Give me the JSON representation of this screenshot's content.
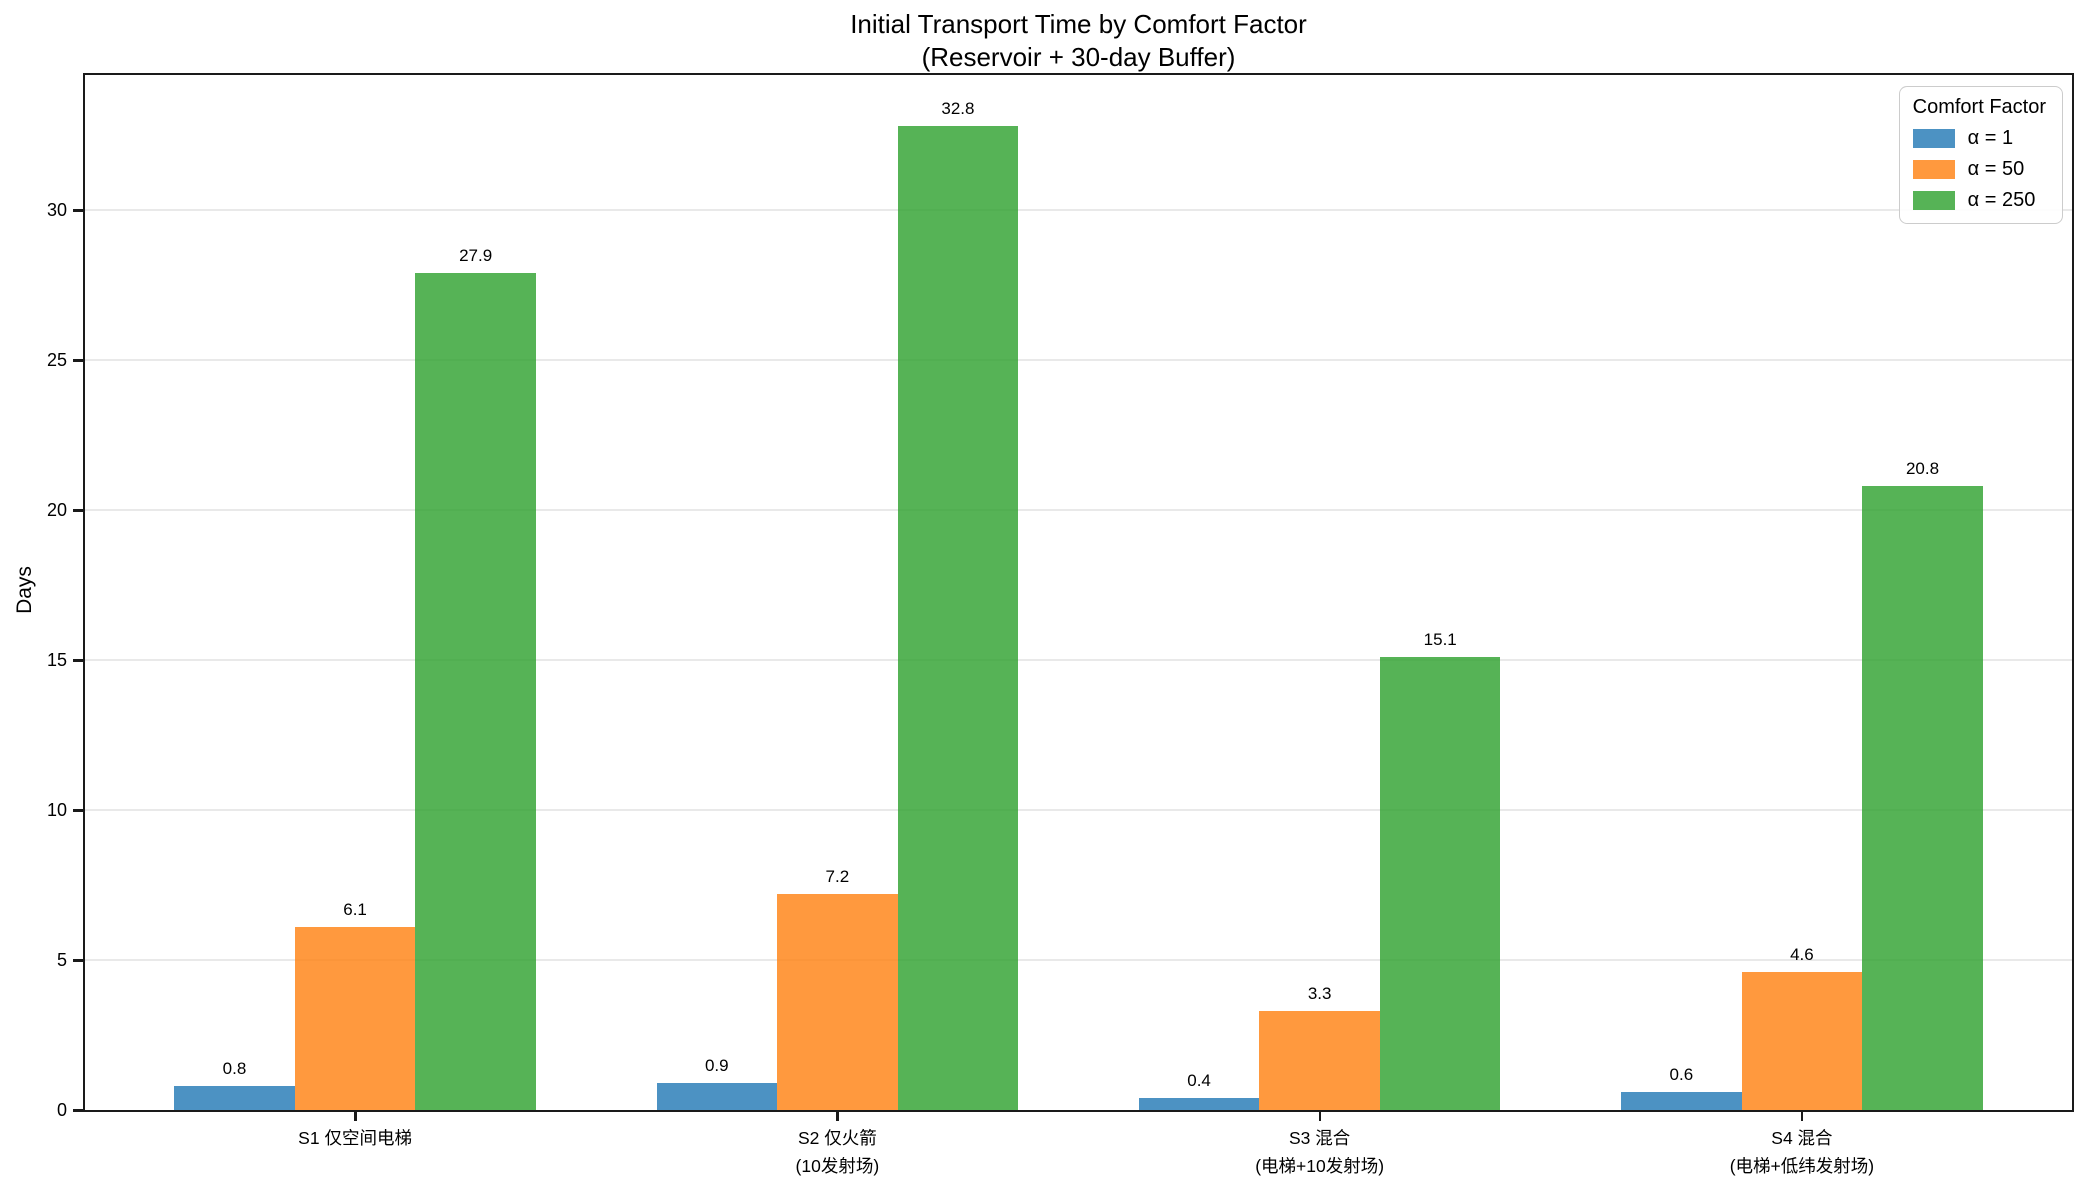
{
  "chart_data": {
    "type": "bar",
    "title": "Initial Transport Time by Comfort Factor",
    "subtitle": "(Reservoir + 30-day Buffer)",
    "ylabel": "Days",
    "ylim": [
      0,
      34.5
    ],
    "yticks": [
      0,
      5,
      10,
      15,
      20,
      25,
      30
    ],
    "grid": true,
    "bar_alpha": 0.8,
    "legend": {
      "title": "Comfort Factor",
      "position": "upper right"
    },
    "categories": [
      {
        "line1": "S1 仅空间电梯",
        "line2": ""
      },
      {
        "line1": "S2 仅火箭",
        "line2": "(10发射场)"
      },
      {
        "line1": "S3 混合",
        "line2": "(电梯+10发射场)"
      },
      {
        "line1": "S4 混合",
        "line2": "(电梯+低纬发射场)"
      }
    ],
    "series": [
      {
        "name": "α = 1",
        "color": "#1f77b4",
        "values": [
          0.8,
          0.9,
          0.4,
          0.6
        ],
        "labels": [
          "0.8",
          "0.9",
          "0.4",
          "0.6"
        ]
      },
      {
        "name": "α = 50",
        "color": "#ff7f0e",
        "values": [
          6.1,
          7.2,
          3.3,
          4.6
        ],
        "labels": [
          "6.1",
          "7.2",
          "3.3",
          "4.6"
        ]
      },
      {
        "name": "α = 250",
        "color": "#2ca02c",
        "values": [
          27.9,
          32.8,
          15.1,
          20.8
        ],
        "labels": [
          "27.9",
          "32.8",
          "15.1",
          "20.8"
        ]
      }
    ]
  },
  "colors": {
    "spine": "#1a1a1a",
    "grid": "#e9e9e9",
    "legend_border": "#cccccc"
  }
}
